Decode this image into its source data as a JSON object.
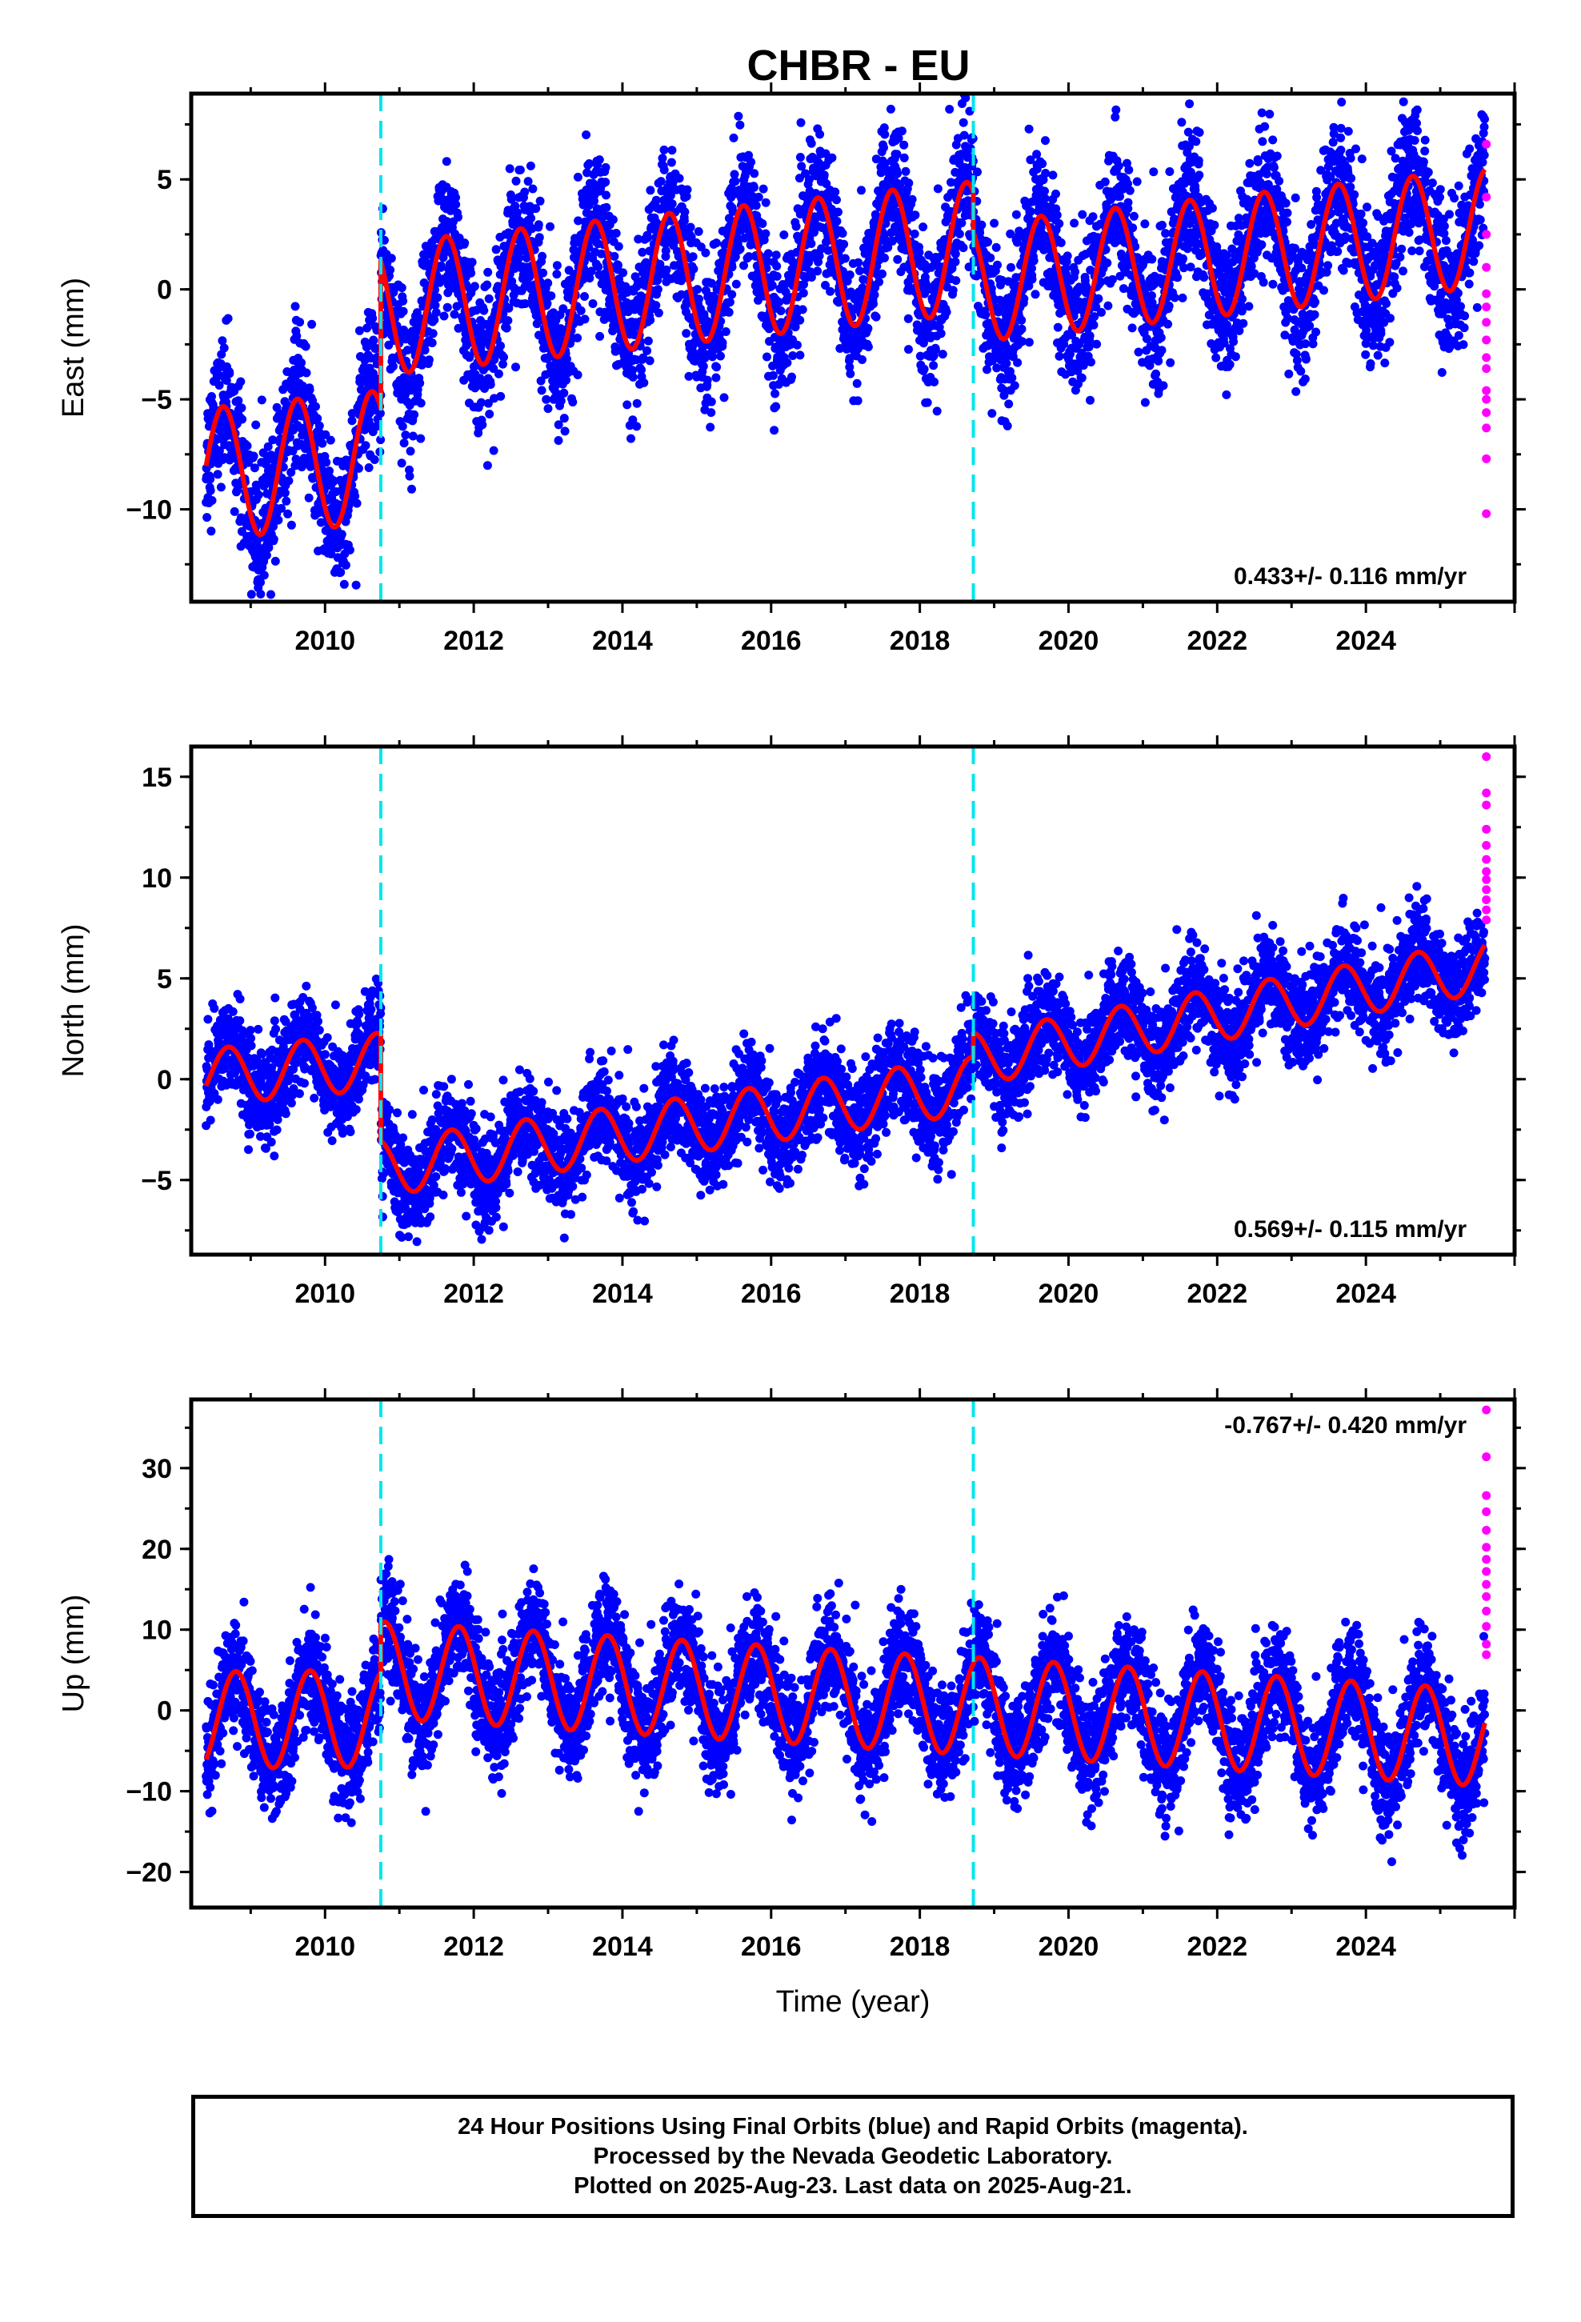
{
  "title": "CHBR - EU",
  "colors": {
    "final": "#0000ff",
    "rapid": "#ff00ff",
    "model": "#ff0000",
    "break": "#00e5ee",
    "frame": "#000000"
  },
  "chart_data": [
    {
      "type": "scatter",
      "component": "east",
      "ylabel": "East (mm)",
      "xlabel": "",
      "xlim": [
        2008.2,
        2026.0
      ],
      "ylim": [
        -14.2,
        8.9
      ],
      "xticks": [
        "2010",
        "2012",
        "2014",
        "2016",
        "2018",
        "2020",
        "2022",
        "2024"
      ],
      "yticks": [
        "5",
        "0",
        "−5",
        "−10"
      ],
      "ytick_values": [
        5,
        0,
        -5,
        -10
      ],
      "rate_label": "0.433+/- 0.116 mm/yr",
      "rate_label_position": "bottom-right",
      "breaks": [
        2010.75,
        2018.72
      ],
      "data_start": 2008.4,
      "data_end": 2025.6,
      "model": {
        "description": "offset + seasonal sinusoid per segment",
        "segments": [
          {
            "start": 2008.4,
            "end": 2010.75,
            "offset_start": -8.4,
            "offset_end": -7.6,
            "amplitude": 3.0,
            "phase_year_frac": 0.38
          },
          {
            "start": 2010.75,
            "end": 2018.72,
            "offset_start": -0.9,
            "offset_end": 1.9,
            "amplitude": 3.0,
            "phase_year_frac": 0.38
          },
          {
            "start": 2018.72,
            "end": 2025.6,
            "offset_start": 0.3,
            "offset_end": 2.8,
            "amplitude": 2.7,
            "phase_year_frac": 0.38
          }
        ]
      },
      "scatter_std": 1.6,
      "rapid": [
        {
          "x": 2025.62,
          "y": 6.6
        },
        {
          "x": 2025.62,
          "y": 4.2
        },
        {
          "x": 2025.62,
          "y": 2.5
        },
        {
          "x": 2025.62,
          "y": 1.0
        },
        {
          "x": 2025.62,
          "y": -0.2
        },
        {
          "x": 2025.62,
          "y": -0.8
        },
        {
          "x": 2025.62,
          "y": -1.5
        },
        {
          "x": 2025.62,
          "y": -2.3
        },
        {
          "x": 2025.62,
          "y": -3.1
        },
        {
          "x": 2025.62,
          "y": -3.6
        },
        {
          "x": 2025.62,
          "y": -4.6
        },
        {
          "x": 2025.62,
          "y": -5.0
        },
        {
          "x": 2025.62,
          "y": -5.6
        },
        {
          "x": 2025.62,
          "y": -6.3
        },
        {
          "x": 2025.62,
          "y": -7.7
        },
        {
          "x": 2025.62,
          "y": -10.2
        }
      ]
    },
    {
      "type": "scatter",
      "component": "north",
      "ylabel": "North (mm)",
      "xlabel": "",
      "xlim": [
        2008.2,
        2026.0
      ],
      "ylim": [
        -8.7,
        16.5
      ],
      "xticks": [
        "2010",
        "2012",
        "2014",
        "2016",
        "2018",
        "2020",
        "2022",
        "2024"
      ],
      "yticks": [
        "15",
        "10",
        "5",
        "0",
        "−5"
      ],
      "ytick_values": [
        15,
        10,
        5,
        0,
        -5
      ],
      "rate_label": "0.569+/- 0.115 mm/yr",
      "rate_label_position": "bottom-right",
      "breaks": [
        2010.75,
        2018.72
      ],
      "data_start": 2008.4,
      "data_end": 2025.6,
      "model": {
        "description": "offset + seasonal sinusoid per segment",
        "segments": [
          {
            "start": 2008.4,
            "end": 2010.75,
            "offset_start": 0.1,
            "offset_end": 0.9,
            "amplitude": 1.4,
            "phase_year_frac": 0.45
          },
          {
            "start": 2010.75,
            "end": 2018.72,
            "offset_start": -4.4,
            "offset_end": -0.3,
            "amplitude": 1.4,
            "phase_year_frac": 0.45
          },
          {
            "start": 2018.72,
            "end": 2025.6,
            "offset_start": 1.0,
            "offset_end": 5.6,
            "amplitude": 1.3,
            "phase_year_frac": 0.45
          }
        ]
      },
      "scatter_std": 1.2,
      "rapid": [
        {
          "x": 2025.62,
          "y": 16.0
        },
        {
          "x": 2025.62,
          "y": 14.2
        },
        {
          "x": 2025.62,
          "y": 13.6
        },
        {
          "x": 2025.62,
          "y": 12.4
        },
        {
          "x": 2025.62,
          "y": 11.6
        },
        {
          "x": 2025.62,
          "y": 10.9
        },
        {
          "x": 2025.62,
          "y": 10.3
        },
        {
          "x": 2025.62,
          "y": 9.9
        },
        {
          "x": 2025.62,
          "y": 9.4
        },
        {
          "x": 2025.62,
          "y": 8.9
        },
        {
          "x": 2025.62,
          "y": 8.4
        },
        {
          "x": 2025.62,
          "y": 7.9
        }
      ]
    },
    {
      "type": "scatter",
      "component": "up",
      "ylabel": "Up (mm)",
      "xlabel": "Time (year)",
      "xlim": [
        2008.2,
        2026.0
      ],
      "ylim": [
        -24.4,
        38.5
      ],
      "xticks": [
        "2010",
        "2012",
        "2014",
        "2016",
        "2018",
        "2020",
        "2022",
        "2024"
      ],
      "yticks": [
        "30",
        "20",
        "10",
        "0",
        "−10",
        "−20"
      ],
      "ytick_values": [
        30,
        20,
        10,
        0,
        -10,
        -20
      ],
      "rate_label": "-0.767+/- 0.420 mm/yr",
      "rate_label_position": "top-right",
      "breaks": [
        2010.75,
        2018.72
      ],
      "data_start": 2008.4,
      "data_end": 2025.6,
      "model": {
        "description": "offset + seasonal sinusoid per segment",
        "segments": [
          {
            "start": 2008.4,
            "end": 2010.75,
            "offset_start": -1.2,
            "offset_end": -1.0,
            "amplitude": 6.0,
            "phase_year_frac": 0.55
          },
          {
            "start": 2010.75,
            "end": 2018.72,
            "offset_start": 5.0,
            "offset_end": 0.5,
            "amplitude": 6.0,
            "phase_year_frac": 0.55
          },
          {
            "start": 2018.72,
            "end": 2025.6,
            "offset_start": 0.6,
            "offset_end": -3.4,
            "amplitude": 6.0,
            "phase_year_frac": 0.55
          }
        ]
      },
      "scatter_std": 3.4,
      "rapid": [
        {
          "x": 2025.62,
          "y": 37.2
        },
        {
          "x": 2025.62,
          "y": 31.4
        },
        {
          "x": 2025.62,
          "y": 26.6
        },
        {
          "x": 2025.62,
          "y": 24.6
        },
        {
          "x": 2025.62,
          "y": 22.3
        },
        {
          "x": 2025.62,
          "y": 20.2
        },
        {
          "x": 2025.62,
          "y": 18.7
        },
        {
          "x": 2025.62,
          "y": 17.2
        },
        {
          "x": 2025.62,
          "y": 15.6
        },
        {
          "x": 2025.62,
          "y": 14.1
        },
        {
          "x": 2025.62,
          "y": 12.3
        },
        {
          "x": 2025.62,
          "y": 10.4
        },
        {
          "x": 2025.62,
          "y": 8.2
        },
        {
          "x": 2025.62,
          "y": 6.9
        }
      ]
    }
  ],
  "caption": {
    "line1": "24 Hour Positions Using Final Orbits (blue) and Rapid Orbits (magenta).",
    "line2": "Processed by the Nevada Geodetic Laboratory.",
    "line3": "Plotted on 2025-Aug-23. Last data on 2025-Aug-21."
  }
}
